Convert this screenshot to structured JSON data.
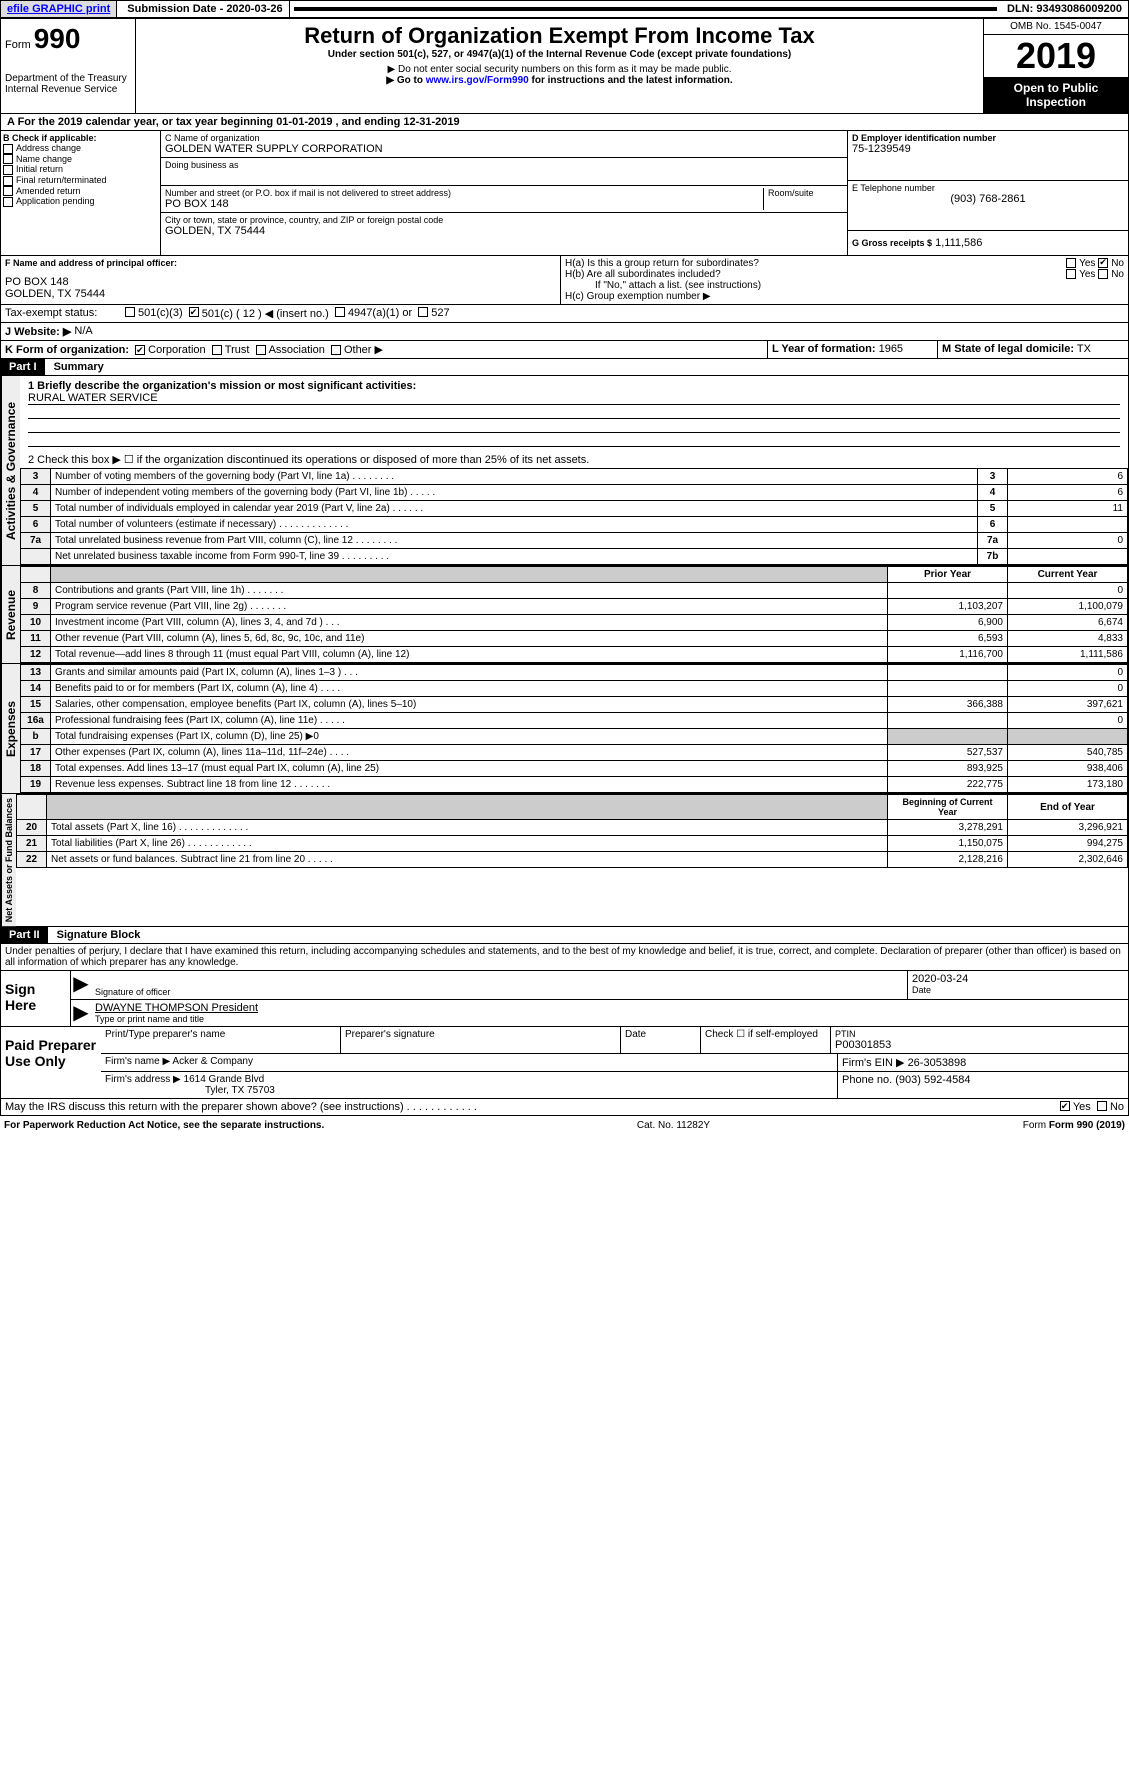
{
  "top_bar": {
    "efile": "efile GRAPHIC print",
    "submission_label": "Submission Date - 2020-03-26",
    "dln": "DLN: 93493086009200"
  },
  "header": {
    "form_label": "Form",
    "form_number": "990",
    "dept1": "Department of the Treasury",
    "dept2": "Internal Revenue Service",
    "title": "Return of Organization Exempt From Income Tax",
    "subtitle": "Under section 501(c), 527, or 4947(a)(1) of the Internal Revenue Code (except private foundations)",
    "note1": "▶ Do not enter social security numbers on this form as it may be made public.",
    "note2_pre": "▶ Go to ",
    "note2_link": "www.irs.gov/Form990",
    "note2_post": " for instructions and the latest information.",
    "omb": "OMB No. 1545-0047",
    "year": "2019",
    "open": "Open to Public Inspection"
  },
  "sectionA": {
    "text": "A    For the 2019 calendar year, or tax year beginning 01-01-2019    , and ending 12-31-2019"
  },
  "blockB": {
    "label": "B Check if applicable:",
    "items": [
      "Address change",
      "Name change",
      "Initial return",
      "Final return/terminated",
      "Amended return",
      "Application pending"
    ]
  },
  "blockC": {
    "name_label": "C Name of organization",
    "name": "GOLDEN WATER SUPPLY CORPORATION",
    "dba_label": "Doing business as",
    "addr_label": "Number and street (or P.O. box if mail is not delivered to street address)",
    "room_label": "Room/suite",
    "addr": "PO BOX 148",
    "city_label": "City or town, state or province, country, and ZIP or foreign postal code",
    "city": "GOLDEN, TX  75444"
  },
  "blockD": {
    "label": "D Employer identification number",
    "ein": "75-1239549",
    "tel_label": "E Telephone number",
    "tel": "(903) 768-2861",
    "gross_label": "G Gross receipts $",
    "gross": "1,111,586"
  },
  "blockF": {
    "label": "F Name and address of principal officer:",
    "line1": "PO BOX 148",
    "line2": "GOLDEN, TX  75444"
  },
  "blockH": {
    "ha": "H(a)  Is this a group return for subordinates?",
    "hb": "H(b)  Are all subordinates included?",
    "hb_note": "If \"No,\" attach a list. (see instructions)",
    "hc": "H(c)  Group exemption number ▶",
    "yes": "Yes",
    "no": "No"
  },
  "blockI": {
    "label": "Tax-exempt status:",
    "opt1": "501(c)(3)",
    "opt2": "501(c) ( 12 ) ◀ (insert no.)",
    "opt3": "4947(a)(1) or",
    "opt4": "527"
  },
  "blockJ": {
    "label": "J    Website: ▶",
    "val": "N/A"
  },
  "blockK": {
    "label": "K Form of organization:",
    "opts": [
      "Corporation",
      "Trust",
      "Association",
      "Other ▶"
    ]
  },
  "blockL": {
    "label": "L Year of formation:",
    "val": "1965"
  },
  "blockM": {
    "label": "M State of legal domicile:",
    "val": "TX"
  },
  "part1": {
    "hdr": "Part I",
    "title": "Summary",
    "line1_label": "1  Briefly describe the organization's mission or most significant activities:",
    "line1_val": "RURAL WATER SERVICE",
    "line2": "2    Check this box ▶ ☐  if the organization discontinued its operations or disposed of more than 25% of its net assets.",
    "side_gov": "Activities & Governance",
    "side_rev": "Revenue",
    "side_exp": "Expenses",
    "side_net": "Net Assets or Fund Balances",
    "col_prior": "Prior Year",
    "col_current": "Current Year",
    "col_begin": "Beginning of Current Year",
    "col_end": "End of Year",
    "governance_rows": [
      {
        "n": "3",
        "t": "Number of voting members of the governing body (Part VI, line 1a)  .  .  .  .  .  .  .  .",
        "rn": "3",
        "v": "6"
      },
      {
        "n": "4",
        "t": "Number of independent voting members of the governing body (Part VI, line 1b)  .  .  .  .  .",
        "rn": "4",
        "v": "6"
      },
      {
        "n": "5",
        "t": "Total number of individuals employed in calendar year 2019 (Part V, line 2a)  .  .  .  .  .  .",
        "rn": "5",
        "v": "11"
      },
      {
        "n": "6",
        "t": "Total number of volunteers (estimate if necessary)  .  .  .  .  .  .  .  .  .  .  .  .  .",
        "rn": "6",
        "v": ""
      },
      {
        "n": "7a",
        "t": "Total unrelated business revenue from Part VIII, column (C), line 12  .  .  .  .  .  .  .  .",
        "rn": "7a",
        "v": "0"
      },
      {
        "n": "",
        "t": "Net unrelated business taxable income from Form 990-T, line 39  .  .  .  .  .  .  .  .  .",
        "rn": "7b",
        "v": ""
      }
    ],
    "revenue_rows": [
      {
        "n": "8",
        "t": "Contributions and grants (Part VIII, line 1h)  .  .  .  .  .  .  .",
        "p": "",
        "c": "0"
      },
      {
        "n": "9",
        "t": "Program service revenue (Part VIII, line 2g)  .  .  .  .  .  .  .",
        "p": "1,103,207",
        "c": "1,100,079"
      },
      {
        "n": "10",
        "t": "Investment income (Part VIII, column (A), lines 3, 4, and 7d )  .  .  .",
        "p": "6,900",
        "c": "6,674"
      },
      {
        "n": "11",
        "t": "Other revenue (Part VIII, column (A), lines 5, 6d, 8c, 9c, 10c, and 11e)",
        "p": "6,593",
        "c": "4,833"
      },
      {
        "n": "12",
        "t": "Total revenue—add lines 8 through 11 (must equal Part VIII, column (A), line 12)",
        "p": "1,116,700",
        "c": "1,111,586"
      }
    ],
    "expense_rows": [
      {
        "n": "13",
        "t": "Grants and similar amounts paid (Part IX, column (A), lines 1–3 )  .  .  .",
        "p": "",
        "c": "0"
      },
      {
        "n": "14",
        "t": "Benefits paid to or for members (Part IX, column (A), line 4)  .  .  .  .",
        "p": "",
        "c": "0"
      },
      {
        "n": "15",
        "t": "Salaries, other compensation, employee benefits (Part IX, column (A), lines 5–10)",
        "p": "366,388",
        "c": "397,621"
      },
      {
        "n": "16a",
        "t": "Professional fundraising fees (Part IX, column (A), line 11e)  .  .  .  .  .",
        "p": "",
        "c": "0"
      },
      {
        "n": "b",
        "t": "Total fundraising expenses (Part IX, column (D), line 25) ▶0",
        "p": "-",
        "c": "-"
      },
      {
        "n": "17",
        "t": "Other expenses (Part IX, column (A), lines 11a–11d, 11f–24e)  .  .  .  .",
        "p": "527,537",
        "c": "540,785"
      },
      {
        "n": "18",
        "t": "Total expenses. Add lines 13–17 (must equal Part IX, column (A), line 25)",
        "p": "893,925",
        "c": "938,406"
      },
      {
        "n": "19",
        "t": "Revenue less expenses. Subtract line 18 from line 12  .  .  .  .  .  .  .",
        "p": "222,775",
        "c": "173,180"
      }
    ],
    "net_rows": [
      {
        "n": "20",
        "t": "Total assets (Part X, line 16)  .  .  .  .  .  .  .  .  .  .  .  .  .",
        "p": "3,278,291",
        "c": "3,296,921"
      },
      {
        "n": "21",
        "t": "Total liabilities (Part X, line 26)  .  .  .  .  .  .  .  .  .  .  .  .",
        "p": "1,150,075",
        "c": "994,275"
      },
      {
        "n": "22",
        "t": "Net assets or fund balances. Subtract line 21 from line 20  .  .  .  .  .",
        "p": "2,128,216",
        "c": "2,302,646"
      }
    ]
  },
  "part2": {
    "hdr": "Part II",
    "title": "Signature Block",
    "perjury": "Under penalties of perjury, I declare that I have examined this return, including accompanying schedules and statements, and to the best of my knowledge and belief, it is true, correct, and complete. Declaration of preparer (other than officer) is based on all information of which preparer has any knowledge.",
    "sign_here": "Sign Here",
    "sig_officer": "Signature of officer",
    "sig_date": "2020-03-24",
    "date_label": "Date",
    "officer_name": "DWAYNE THOMPSON President",
    "type_label": "Type or print name and title",
    "paid": "Paid Preparer Use Only",
    "prep_name_label": "Print/Type preparer's name",
    "prep_sig_label": "Preparer's signature",
    "prep_date_label": "Date",
    "check_self": "Check ☐ if self-employed",
    "ptin_label": "PTIN",
    "ptin": "P00301853",
    "firm_name_label": "Firm's name    ▶",
    "firm_name": "Acker & Company",
    "firm_ein_label": "Firm's EIN ▶",
    "firm_ein": "26-3053898",
    "firm_addr_label": "Firm's address ▶",
    "firm_addr1": "1614 Grande Blvd",
    "firm_addr2": "Tyler, TX  75703",
    "phone_label": "Phone no.",
    "phone": "(903) 592-4584",
    "discuss": "May the IRS discuss this return with the preparer shown above? (see instructions)  .  .  .  .  .  .  .  .  .  .  .  .",
    "discuss_yes": "Yes",
    "discuss_no": "No"
  },
  "footer": {
    "pra": "For Paperwork Reduction Act Notice, see the separate instructions.",
    "cat": "Cat. No. 11282Y",
    "form": "Form 990 (2019)"
  }
}
